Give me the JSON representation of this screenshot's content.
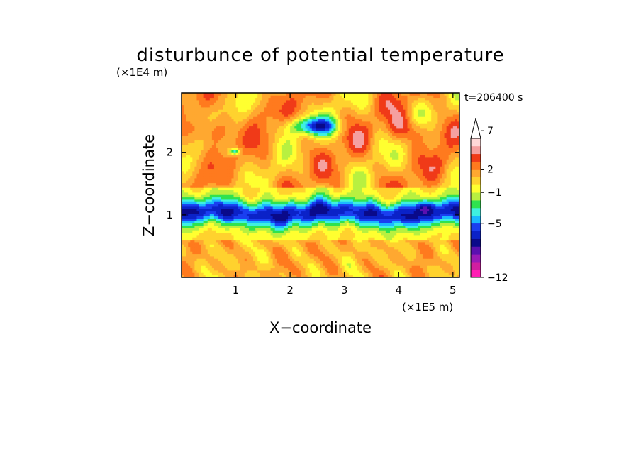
{
  "chart_data": {
    "type": "heatmap",
    "title": "disturbunce of potential temperature",
    "time_label": "t=206400 s",
    "xlabel": "X−coordinate",
    "ylabel": "Z−coordinate",
    "x_unit": "(×1E5 m)",
    "y_unit": "(×1E4 m)",
    "xlim": [
      0,
      5.12
    ],
    "ylim": [
      0,
      2.95
    ],
    "x_ticks": [
      1,
      2,
      3,
      4,
      5
    ],
    "y_ticks": [
      1,
      2
    ],
    "x_tick_labels": [
      "1",
      "2",
      "3",
      "4",
      "5"
    ],
    "y_tick_labels": [
      "1",
      "2"
    ],
    "colorbar": {
      "levels": [
        -12,
        -11,
        -10,
        -9,
        -8,
        -7,
        -6,
        -5,
        -4,
        -3,
        -2,
        -1,
        0,
        1,
        2,
        3,
        4,
        5,
        6,
        7,
        8,
        9
      ],
      "tick_values": [
        -12,
        -5,
        -1,
        2,
        7
      ],
      "tick_labels": [
        "−12",
        "−5",
        "−1",
        "2",
        "7"
      ],
      "colors": [
        "#ff1fb4",
        "#d01ea0",
        "#9a1ab6",
        "#5a10b0",
        "#0a0a8a",
        "#0b22c8",
        "#1a3ff0",
        "#1ab8ff",
        "#3ff0e0",
        "#2fe24f",
        "#b8f040",
        "#ffff30",
        "#ffd22e",
        "#ffa830",
        "#ff7a1e",
        "#f03a18",
        "#f5a0a0",
        "#ffd8d8"
      ],
      "extend": "max"
    }
  }
}
